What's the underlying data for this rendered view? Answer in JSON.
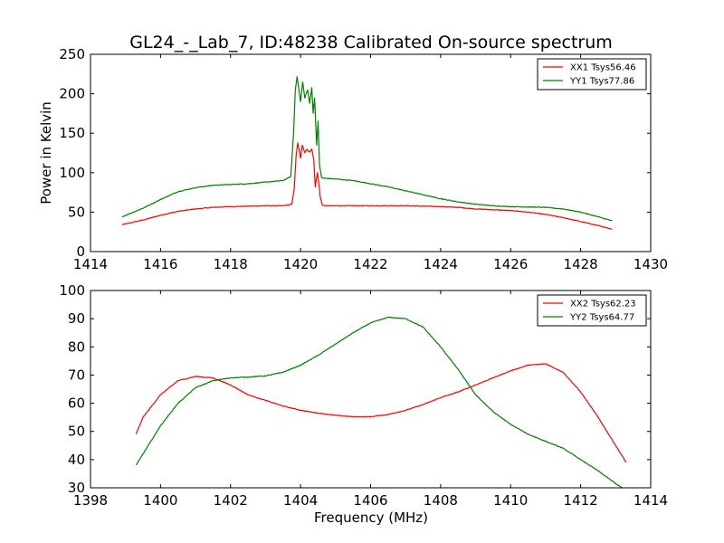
{
  "figure": {
    "title": "GL24_-_Lab_7, ID:48238 Calibrated On-source spectrum",
    "xlabel": "Frequency (MHz)"
  },
  "chart_data": [
    {
      "type": "line",
      "ylabel": "Power in Kelvin",
      "xlim": [
        1414,
        1430
      ],
      "ylim": [
        0,
        250
      ],
      "xticks": [
        1414,
        1416,
        1418,
        1420,
        1422,
        1424,
        1426,
        1428,
        1430
      ],
      "yticks": [
        0,
        50,
        100,
        150,
        200,
        250
      ],
      "legend_position": "top-right",
      "grid": false,
      "series": [
        {
          "name": "XX1 Tsys56.46",
          "color": "#ff0000",
          "x": [
            1414.9,
            1415.5,
            1416.0,
            1416.5,
            1417.0,
            1417.5,
            1418.0,
            1418.5,
            1419.0,
            1419.5,
            1419.75,
            1419.82,
            1419.87,
            1419.92,
            1420.0,
            1420.05,
            1420.12,
            1420.18,
            1420.25,
            1420.32,
            1420.38,
            1420.42,
            1420.48,
            1420.52,
            1420.56,
            1420.62,
            1420.7,
            1421.0,
            1421.5,
            1422.0,
            1422.5,
            1423.0,
            1423.5,
            1424.0,
            1424.5,
            1425.0,
            1425.5,
            1426.0,
            1426.5,
            1427.0,
            1427.5,
            1428.0,
            1428.5,
            1428.9
          ],
          "y": [
            34,
            40,
            46,
            51,
            54,
            56,
            57,
            57.5,
            58,
            58,
            60,
            80,
            120,
            138,
            118,
            135,
            125,
            130,
            126,
            130,
            115,
            82,
            100,
            88,
            70,
            59,
            58,
            58,
            58,
            58,
            58,
            58,
            57.5,
            57,
            56,
            54,
            53,
            52,
            50,
            47,
            43,
            38,
            33,
            28
          ]
        },
        {
          "name": "YY1 Tsys77.86",
          "color": "#008000",
          "x": [
            1414.9,
            1415.5,
            1416.0,
            1416.5,
            1417.0,
            1417.5,
            1418.0,
            1418.5,
            1419.0,
            1419.5,
            1419.72,
            1419.8,
            1419.85,
            1419.9,
            1420.0,
            1420.06,
            1420.12,
            1420.2,
            1420.26,
            1420.32,
            1420.36,
            1420.4,
            1420.46,
            1420.5,
            1420.54,
            1420.6,
            1420.65,
            1421.0,
            1421.5,
            1422.0,
            1422.5,
            1423.0,
            1423.5,
            1424.0,
            1424.5,
            1425.0,
            1425.5,
            1426.0,
            1426.5,
            1427.0,
            1427.5,
            1428.0,
            1428.5,
            1428.9
          ],
          "y": [
            44,
            55,
            66,
            76,
            81,
            84,
            85,
            86,
            88,
            90,
            95,
            150,
            205,
            222,
            190,
            215,
            195,
            205,
            188,
            208,
            175,
            195,
            135,
            165,
            110,
            94,
            93,
            92,
            90,
            86,
            82,
            77,
            72,
            67,
            63,
            60,
            58,
            57,
            56.5,
            56,
            54,
            50,
            44,
            39
          ]
        }
      ]
    },
    {
      "type": "line",
      "ylabel": "",
      "xlim": [
        1398,
        1414
      ],
      "ylim": [
        30,
        100
      ],
      "xticks": [
        1398,
        1400,
        1402,
        1404,
        1406,
        1408,
        1410,
        1412,
        1414
      ],
      "yticks": [
        30,
        40,
        50,
        60,
        70,
        80,
        90,
        100
      ],
      "legend_position": "top-right",
      "grid": false,
      "series": [
        {
          "name": "XX2 Tsys62.23",
          "color": "#ff0000",
          "x": [
            1399.3,
            1399.5,
            1400.0,
            1400.5,
            1401.0,
            1401.5,
            1402.0,
            1402.5,
            1403.0,
            1403.5,
            1404.0,
            1404.5,
            1405.0,
            1405.5,
            1406.0,
            1406.5,
            1407.0,
            1407.5,
            1408.0,
            1408.5,
            1409.0,
            1409.5,
            1410.0,
            1410.5,
            1411.0,
            1411.5,
            1412.0,
            1412.5,
            1413.0,
            1413.3
          ],
          "y": [
            49,
            55,
            63,
            68,
            69.5,
            69,
            66.5,
            63,
            61,
            59,
            57.5,
            56.5,
            55.7,
            55.2,
            55.2,
            56,
            57.5,
            59.5,
            62,
            64,
            66.5,
            69,
            71.5,
            73.5,
            74,
            71,
            64,
            55,
            45,
            39
          ]
        },
        {
          "name": "YY2 Tsys64.77",
          "color": "#008000",
          "x": [
            1399.3,
            1399.5,
            1400.0,
            1400.5,
            1401.0,
            1401.5,
            1402.0,
            1402.5,
            1403.0,
            1403.5,
            1404.0,
            1404.5,
            1405.0,
            1405.5,
            1406.0,
            1406.5,
            1407.0,
            1407.5,
            1408.0,
            1408.5,
            1409.0,
            1409.5,
            1410.0,
            1410.5,
            1411.0,
            1411.5,
            1412.0,
            1412.5,
            1413.0,
            1413.3
          ],
          "y": [
            38,
            42,
            52,
            60,
            65.5,
            68,
            69,
            69.3,
            69.7,
            71,
            73.5,
            77,
            81,
            85,
            88.5,
            90.5,
            90,
            87,
            80,
            72,
            63,
            57,
            52.5,
            49,
            46.5,
            44,
            40,
            36,
            31.5,
            29
          ]
        }
      ]
    }
  ]
}
